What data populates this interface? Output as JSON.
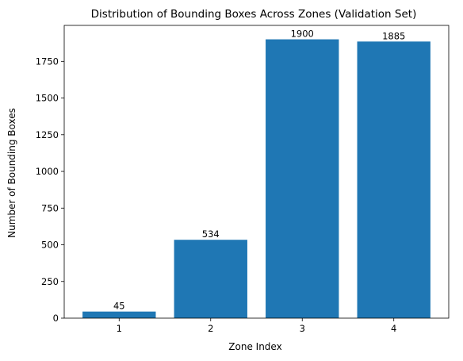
{
  "chart_data": {
    "type": "bar",
    "title": "Distribution of Bounding Boxes Across Zones (Validation Set)",
    "xlabel": "Zone Index",
    "ylabel": "Number of Bounding Boxes",
    "categories": [
      "1",
      "2",
      "3",
      "4"
    ],
    "values": [
      45,
      534,
      1900,
      1885
    ],
    "data_labels": [
      "45",
      "534",
      "1900",
      "1885"
    ],
    "yticks": [
      0,
      250,
      500,
      750,
      1000,
      1250,
      1500,
      1750
    ],
    "ytick_labels": [
      "0",
      "250",
      "500",
      "750",
      "1000",
      "1250",
      "1500",
      "1750"
    ],
    "ylim": [
      0,
      1995
    ],
    "grid": false,
    "bar_color": "#1f77b4"
  }
}
